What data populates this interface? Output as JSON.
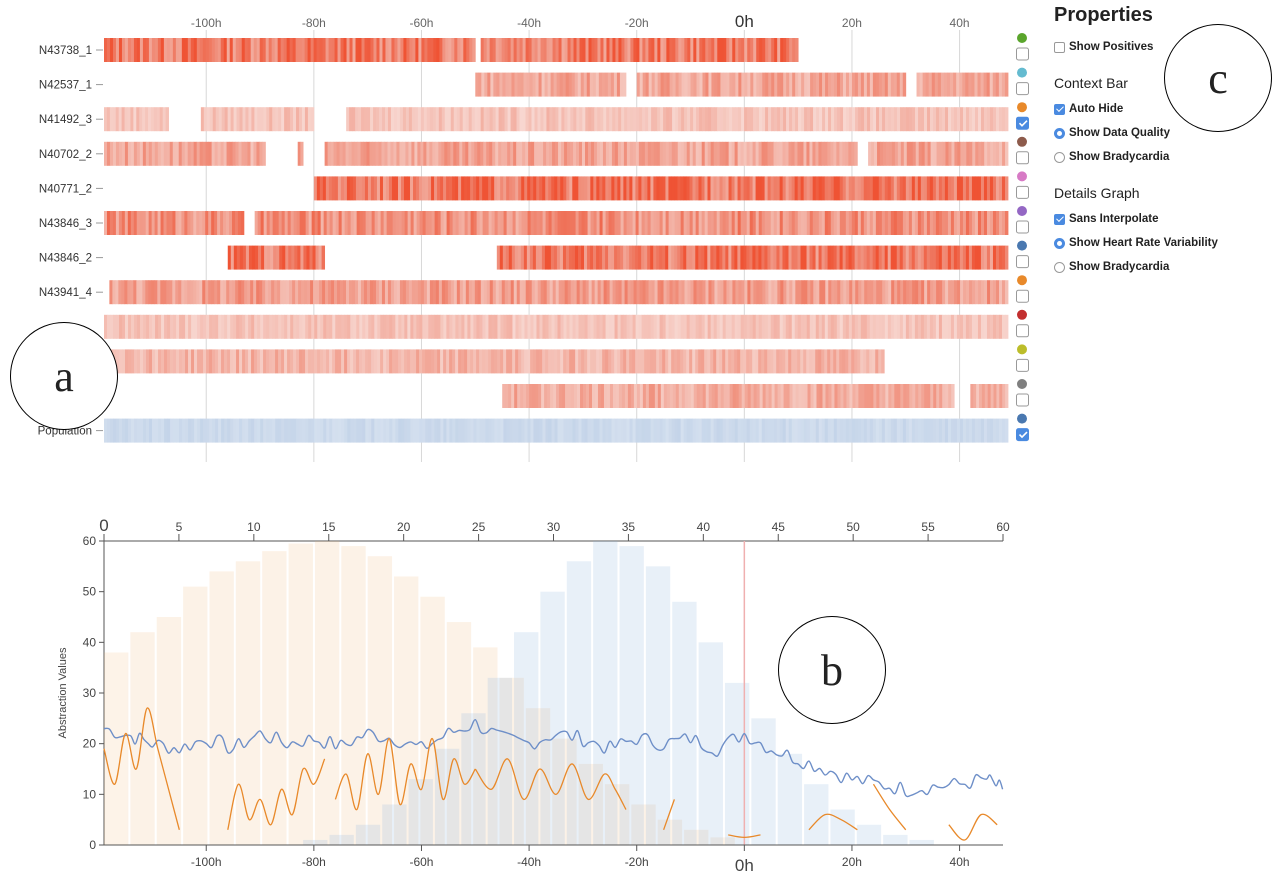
{
  "chart_data": [
    {
      "type": "heatmap",
      "x_ticks": [
        "-100h",
        "-80h",
        "-60h",
        "-40h",
        "-20h",
        "0h",
        "20h",
        "40h"
      ],
      "x_range_hours": [
        -119,
        49
      ],
      "rows": [
        {
          "label": "N43738_1",
          "color": "#5aa52c",
          "checked": false,
          "segments": [
            [
              -119,
              -50
            ],
            [
              -49,
              10
            ]
          ],
          "intensity": 0.85
        },
        {
          "label": "N42537_1",
          "color": "#64bbd0",
          "checked": false,
          "segments": [
            [
              -50,
              -22
            ],
            [
              -20,
              30
            ],
            [
              32,
              49
            ]
          ],
          "intensity": 0.55
        },
        {
          "label": "N41492_3",
          "color": "#e8892a",
          "checked": true,
          "segments": [
            [
              -119,
              -107
            ],
            [
              -101,
              -80
            ],
            [
              -74,
              -19
            ],
            [
              -19,
              49
            ]
          ],
          "intensity": 0.35
        },
        {
          "label": "N40702_2",
          "color": "#8d5b4c",
          "checked": false,
          "segments": [
            [
              -119,
              -89
            ],
            [
              -83,
              -82
            ],
            [
              -78,
              21
            ],
            [
              23,
              49
            ]
          ],
          "intensity": 0.55
        },
        {
          "label": "N40771_2",
          "color": "#d77ac5",
          "checked": false,
          "segments": [
            [
              -80,
              49
            ]
          ],
          "intensity": 0.9
        },
        {
          "label": "N43846_3",
          "color": "#9467c4",
          "checked": false,
          "segments": [
            [
              -119,
              -93
            ],
            [
              -91,
              -23
            ],
            [
              -23,
              49
            ]
          ],
          "intensity": 0.7
        },
        {
          "label": "N43846_2",
          "color": "#4a78b0",
          "checked": false,
          "segments": [
            [
              -96,
              -78
            ],
            [
              -46,
              49
            ]
          ],
          "intensity": 0.85
        },
        {
          "label": "N43941_4",
          "color": "#e8892a",
          "checked": false,
          "segments": [
            [
              -118,
              49
            ]
          ],
          "intensity": 0.6
        },
        {
          "label": "",
          "color": "#c22f2f",
          "checked": false,
          "segments": [
            [
              -119,
              49
            ]
          ],
          "intensity": 0.35
        },
        {
          "label": "",
          "color": "#bcbd2a",
          "checked": false,
          "segments": [
            [
              -119,
              26
            ]
          ],
          "intensity": 0.45
        },
        {
          "label": "",
          "color": "#7f7f7f",
          "checked": false,
          "segments": [
            [
              -45,
              39
            ],
            [
              42,
              49
            ]
          ],
          "intensity": 0.5
        },
        {
          "label": "Population",
          "color": "#4a78b0",
          "checked": true,
          "segments": [
            [
              -119,
              49
            ]
          ],
          "intensity": 0.35,
          "hue": "blue"
        }
      ]
    },
    {
      "type": "line",
      "ylabel": "Abstraction Values",
      "ylim": [
        0,
        60
      ],
      "y_ticks": [
        0,
        10,
        20,
        30,
        40,
        50,
        60
      ],
      "top_axis_ticks": [
        0,
        5,
        10,
        15,
        20,
        25,
        30,
        35,
        40,
        45,
        50,
        55,
        60
      ],
      "x_ticks": [
        "-100h",
        "-80h",
        "-60h",
        "-40h",
        "-20h",
        "0h",
        "20h",
        "40h"
      ],
      "x_range_hours": [
        -119,
        49
      ],
      "marker_hour": 0,
      "histograms": [
        {
          "name": "",
          "color": "#f2b36d",
          "values": [
            38,
            42,
            45,
            51,
            54,
            56,
            58,
            59.5,
            60,
            59,
            57,
            53,
            49,
            44,
            39,
            33,
            27,
            21,
            16,
            12,
            8,
            5,
            3,
            1.5
          ]
        },
        {
          "name": "",
          "color": "#8fb6de",
          "values": [
            1,
            2,
            4,
            8,
            13,
            19,
            26,
            33,
            42,
            50,
            56,
            60,
            59,
            55,
            48,
            40,
            32,
            25,
            18,
            12,
            7,
            4,
            2,
            1
          ]
        }
      ],
      "series": [
        {
          "name": "",
          "color": "#6e8fc8",
          "x": [
            -119,
            -114,
            -110,
            -105,
            -100,
            -95,
            -90,
            -85,
            -80,
            -75,
            -70,
            -65,
            -60,
            -55,
            -50,
            -45,
            -40,
            -35,
            -30,
            -25,
            -20,
            -15,
            -10,
            -5,
            0,
            5,
            10,
            15,
            20,
            25,
            30,
            35,
            40,
            45,
            48
          ],
          "y": [
            23,
            21.5,
            20,
            19,
            21,
            19,
            22,
            20,
            21,
            19.5,
            22,
            21,
            19,
            22,
            24,
            21,
            20,
            22,
            21,
            19,
            21,
            20,
            21,
            19,
            22,
            19,
            17,
            15,
            13,
            12,
            11,
            11.5,
            12,
            13,
            11
          ]
        },
        {
          "name": "",
          "color": "#e8892a",
          "segments": [
            {
              "x": [
                -119,
                -117,
                -115,
                -113,
                -111,
                -109,
                -107,
                -105
              ],
              "y": [
                19,
                12,
                22,
                15,
                27,
                19,
                11,
                3
              ]
            },
            {
              "x": [
                -96,
                -94,
                -92,
                -90,
                -88,
                -86,
                -84,
                -82,
                -80,
                -78
              ],
              "y": [
                3,
                12,
                5,
                9,
                4,
                11,
                6,
                15,
                12,
                17
              ]
            },
            {
              "x": [
                -76,
                -74,
                -72,
                -70,
                -68,
                -66,
                -64,
                -62,
                -60,
                -58,
                -56,
                -54,
                -52,
                -50
              ],
              "y": [
                9,
                14,
                7,
                18,
                10,
                21,
                8,
                16,
                11,
                21,
                9,
                17,
                12,
                15
              ]
            },
            {
              "x": [
                -50,
                -47,
                -44,
                -41,
                -38,
                -35,
                -32,
                -29,
                -26,
                -24,
                -22
              ],
              "y": [
                15,
                11,
                17,
                9,
                15,
                10,
                16,
                9,
                14,
                11,
                7
              ]
            },
            {
              "x": [
                -15,
                -13
              ],
              "y": [
                3,
                9
              ]
            },
            {
              "x": [
                -3,
                0,
                3
              ],
              "y": [
                2,
                1.5,
                2
              ]
            },
            {
              "x": [
                12,
                15,
                18,
                21
              ],
              "y": [
                3,
                6,
                5,
                3
              ]
            },
            {
              "x": [
                24,
                27,
                30
              ],
              "y": [
                12,
                7,
                3
              ]
            },
            {
              "x": [
                38,
                41,
                44,
                47
              ],
              "y": [
                4,
                1,
                6,
                4
              ]
            }
          ]
        }
      ]
    }
  ],
  "panel": {
    "title": "Properties",
    "show_positives": "Show Positives",
    "context_bar": "Context Bar",
    "auto_hide": "Auto Hide",
    "show_data_quality": "Show Data Quality",
    "show_bradycardia_1": "Show Bradycardia",
    "details_graph": "Details Graph",
    "sans_interpolate": "Sans Interpolate",
    "show_hrv": "Show Heart Rate Variability",
    "show_bradycardia_2": "Show Bradycardia",
    "state": {
      "show_positives": false,
      "auto_hide": true,
      "data_quality": true,
      "bradycardia_1": false,
      "sans_interpolate": true,
      "hrv": true,
      "bradycardia_2": false
    }
  },
  "labels": {
    "a": "a",
    "b": "b",
    "c": "c"
  }
}
